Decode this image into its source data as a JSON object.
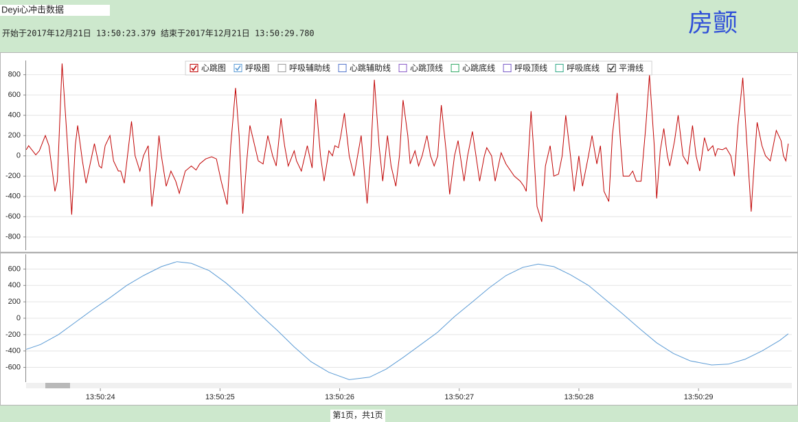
{
  "header": {
    "app_title": "Deyi心冲击数据",
    "time_range": "开始于2017年12月21日 13:50:23.379 结束于2017年12月21日 13:50:29.780",
    "patient_label": "房颤"
  },
  "legend_options": [
    {
      "label": "呼吸辅助线",
      "checked": false,
      "color": "#9a9a9a"
    },
    {
      "label": "心跳辅助线",
      "checked": false,
      "color": "#5577cc"
    },
    {
      "label": "心跳顶线",
      "checked": false,
      "color": "#8a5cc8"
    },
    {
      "label": "心跳底线",
      "checked": false,
      "color": "#33aa66"
    },
    {
      "label": "呼吸顶线",
      "checked": false,
      "color": "#7a5cc8"
    },
    {
      "label": "呼吸底线",
      "checked": false,
      "color": "#33aa88"
    },
    {
      "label": "平滑线",
      "checked": true,
      "color": "#333333"
    }
  ],
  "chart_data": [
    {
      "type": "line",
      "grid": true,
      "xlim": [
        23.379,
        29.78
      ],
      "ylim": [
        -930,
        940
      ],
      "yticks": [
        -800,
        -600,
        -400,
        -200,
        0,
        200,
        400,
        600,
        800
      ],
      "x": [
        23.38,
        23.4,
        23.46,
        23.49,
        23.54,
        23.57,
        23.62,
        23.64,
        23.68,
        23.72,
        23.76,
        23.79,
        23.81,
        23.85,
        23.88,
        23.92,
        23.95,
        23.99,
        24.01,
        24.04,
        24.08,
        24.11,
        24.15,
        24.17,
        24.2,
        24.26,
        24.29,
        24.33,
        24.36,
        24.4,
        24.43,
        24.47,
        24.49,
        24.51,
        24.55,
        24.59,
        24.63,
        24.66,
        24.71,
        24.76,
        24.8,
        24.83,
        24.88,
        24.93,
        24.97,
        25.01,
        25.06,
        25.09,
        25.13,
        25.16,
        25.19,
        25.22,
        25.25,
        25.29,
        25.32,
        25.36,
        25.4,
        25.44,
        25.47,
        25.51,
        25.54,
        25.57,
        25.62,
        25.64,
        25.68,
        25.71,
        25.73,
        25.77,
        25.8,
        25.84,
        25.87,
        25.91,
        25.94,
        25.96,
        25.99,
        26.01,
        26.04,
        26.08,
        26.12,
        26.15,
        26.18,
        26.23,
        26.26,
        26.29,
        26.33,
        26.36,
        26.4,
        26.43,
        26.47,
        26.5,
        26.53,
        26.57,
        26.59,
        26.63,
        26.66,
        26.69,
        26.73,
        26.76,
        26.79,
        26.82,
        26.85,
        26.89,
        26.92,
        26.96,
        26.99,
        27.04,
        27.07,
        27.11,
        27.14,
        27.17,
        27.21,
        27.23,
        27.27,
        27.3,
        27.35,
        27.39,
        27.46,
        27.51,
        27.54,
        27.56,
        27.6,
        27.62,
        27.65,
        27.69,
        27.72,
        27.76,
        27.79,
        27.83,
        27.86,
        27.89,
        27.93,
        27.96,
        28.0,
        28.03,
        28.08,
        28.11,
        28.15,
        28.18,
        28.21,
        28.25,
        28.28,
        28.32,
        28.35,
        28.37,
        28.42,
        28.45,
        28.48,
        28.52,
        28.56,
        28.59,
        28.63,
        28.65,
        28.68,
        28.71,
        28.74,
        28.76,
        28.8,
        28.83,
        28.87,
        28.91,
        28.95,
        28.98,
        29.01,
        29.05,
        29.08,
        29.12,
        29.14,
        29.16,
        29.2,
        29.23,
        29.27,
        29.3,
        29.33,
        29.37,
        29.4,
        29.44,
        29.47,
        29.49,
        29.53,
        29.56,
        29.6,
        29.65,
        29.69,
        29.71,
        29.73,
        29.75
      ],
      "series": [
        {
          "name": "心跳图",
          "color": "#c00000",
          "values": [
            60,
            100,
            10,
            50,
            200,
            100,
            -350,
            -250,
            910,
            200,
            -580,
            100,
            300,
            -50,
            -270,
            -50,
            120,
            -100,
            -120,
            100,
            200,
            -50,
            -150,
            -150,
            -270,
            340,
            0,
            -150,
            0,
            100,
            -500,
            -100,
            200,
            0,
            -300,
            -150,
            -250,
            -370,
            -150,
            -100,
            -140,
            -80,
            -30,
            -10,
            -30,
            -250,
            -480,
            100,
            670,
            200,
            -570,
            -100,
            300,
            100,
            -50,
            -80,
            200,
            0,
            -100,
            370,
            100,
            -100,
            50,
            -50,
            -150,
            0,
            100,
            -120,
            560,
            0,
            -250,
            50,
            0,
            100,
            80,
            200,
            420,
            0,
            -200,
            0,
            200,
            -470,
            0,
            750,
            100,
            -250,
            200,
            -100,
            -300,
            0,
            550,
            200,
            -80,
            50,
            -100,
            0,
            200,
            0,
            -100,
            0,
            500,
            50,
            -380,
            0,
            150,
            -250,
            0,
            240,
            0,
            -250,
            0,
            80,
            0,
            -250,
            30,
            -80,
            -200,
            -250,
            -300,
            -350,
            440,
            100,
            -500,
            -650,
            -100,
            100,
            -200,
            -180,
            0,
            400,
            0,
            -350,
            0,
            -300,
            0,
            200,
            -80,
            100,
            -350,
            -450,
            200,
            620,
            100,
            -200,
            -200,
            -150,
            -250,
            -250,
            300,
            800,
            100,
            -420,
            50,
            270,
            0,
            -100,
            150,
            400,
            0,
            -80,
            300,
            0,
            -150,
            180,
            50,
            100,
            0,
            70,
            60,
            80,
            0,
            -200,
            300,
            770,
            200,
            -550,
            0,
            330,
            100,
            0,
            -50,
            250,
            150,
            0,
            -50,
            120
          ]
        }
      ]
    },
    {
      "type": "line",
      "grid": true,
      "xlim": [
        23.379,
        29.78
      ],
      "ylim": [
        -780,
        780
      ],
      "yticks": [
        -600,
        -400,
        -200,
        0,
        200,
        400,
        600
      ],
      "xticks": [
        {
          "value": 24,
          "label": "13:50:24"
        },
        {
          "value": 25,
          "label": "13:50:25"
        },
        {
          "value": 26,
          "label": "13:50:26"
        },
        {
          "value": 27,
          "label": "13:50:27"
        },
        {
          "value": 28,
          "label": "13:50:28"
        },
        {
          "value": 29,
          "label": "13:50:29"
        }
      ],
      "x": [
        23.38,
        23.5,
        23.65,
        23.79,
        23.93,
        24.08,
        24.22,
        24.36,
        24.51,
        24.64,
        24.76,
        24.91,
        25.05,
        25.19,
        25.33,
        25.48,
        25.62,
        25.76,
        25.91,
        26.08,
        26.25,
        26.39,
        26.53,
        26.68,
        26.82,
        26.96,
        27.11,
        27.25,
        27.39,
        27.53,
        27.66,
        27.79,
        27.93,
        28.08,
        28.22,
        28.36,
        28.51,
        28.65,
        28.79,
        28.93,
        29.11,
        29.25,
        29.39,
        29.53,
        29.68,
        29.75
      ],
      "series": [
        {
          "name": "呼吸图",
          "color": "#5b9bd5",
          "values": [
            -380,
            -320,
            -200,
            -50,
            100,
            250,
            400,
            520,
            630,
            690,
            670,
            580,
            430,
            250,
            50,
            -150,
            -350,
            -530,
            -660,
            -750,
            -720,
            -620,
            -480,
            -320,
            -170,
            20,
            200,
            370,
            520,
            620,
            660,
            630,
            530,
            400,
            230,
            60,
            -130,
            -300,
            -430,
            -520,
            -570,
            -560,
            -500,
            -400,
            -270,
            -190
          ]
        }
      ]
    }
  ],
  "footer": {
    "pagination": "第1页，共1页"
  }
}
